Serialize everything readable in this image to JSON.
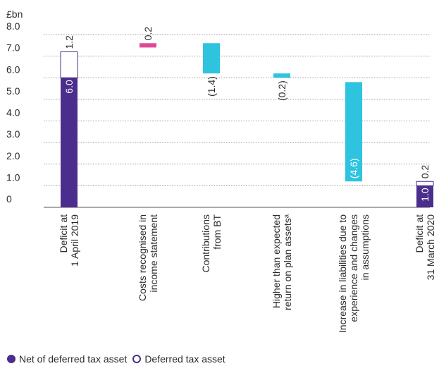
{
  "chart_data": {
    "type": "bar",
    "subtype": "waterfall",
    "ylabel": "£bn",
    "ylim": [
      0,
      8
    ],
    "yticks": [
      "0",
      "1.0",
      "2.0",
      "3.0",
      "4.0",
      "5.0",
      "6.0",
      "7.0",
      "8.0"
    ],
    "grid": true,
    "legend_position": "bottom-left",
    "categories": [
      [
        "Deficit at",
        "1 April 2019"
      ],
      [
        "Costs recognised in",
        "income statement"
      ],
      [
        "Contributions",
        "from BT"
      ],
      [
        "Higher than expected",
        "return on plan assetsᵃ"
      ],
      [
        "Increase in liabilities due to",
        "experience and changes",
        "in assumptions"
      ],
      [
        "Deficit at",
        "31 March 2020"
      ]
    ],
    "bars": [
      {
        "start": 0,
        "end": 6.0,
        "color": "#4a2d8c",
        "kind": "total",
        "label": "6.0",
        "label_color": "#ffffff"
      },
      {
        "start": 6.0,
        "end": 7.2,
        "color": "#ffffff",
        "kind": "deferred",
        "label": "1.2",
        "label_color": "#2b2b2b"
      },
      {
        "start": 7.4,
        "end": 7.6,
        "color": "#e0499a",
        "kind": "increase",
        "label": "0.2",
        "label_color": "#2b2b2b"
      },
      {
        "start": 7.6,
        "end": 6.2,
        "color": "#2ec4e0",
        "kind": "decrease",
        "label": "(1.4)",
        "label_color": "#2b2b2b"
      },
      {
        "start": 6.2,
        "end": 6.0,
        "color": "#2ec4e0",
        "kind": "decrease",
        "label": "(0.2)",
        "label_color": "#2b2b2b"
      },
      {
        "start": 5.8,
        "end": 1.2,
        "color": "#2ec4e0",
        "kind": "decrease",
        "label": "(4.6)",
        "label_color": "#ffffff"
      },
      {
        "start": 0,
        "end": 1.0,
        "color": "#4a2d8c",
        "kind": "total",
        "label": "1.0",
        "label_color": "#ffffff"
      },
      {
        "start": 1.0,
        "end": 1.2,
        "color": "#ffffff",
        "kind": "deferred",
        "label": "0.2",
        "label_color": "#2b2b2b"
      }
    ]
  },
  "legend": {
    "net_label": "Net of deferred tax asset",
    "deferred_label": "Deferred tax asset",
    "net_color": "#4a2d8c",
    "deferred_color": "#4a2d8c"
  }
}
